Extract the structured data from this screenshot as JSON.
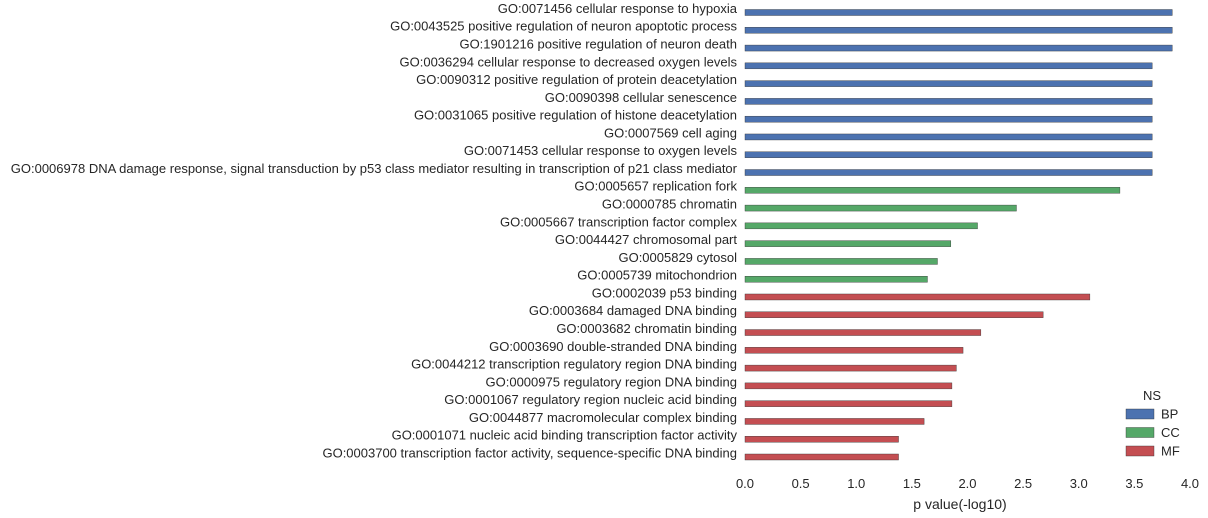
{
  "chart_data": {
    "type": "bar",
    "orientation": "horizontal",
    "title": "",
    "xlabel": "p value(-log10)",
    "ylabel": "",
    "xlim": [
      0,
      4.0
    ],
    "xticks": [
      "0.0",
      "0.5",
      "1.0",
      "1.5",
      "2.0",
      "2.5",
      "3.0",
      "3.5",
      "4.0"
    ],
    "grid": false,
    "legend": {
      "title": "NS",
      "placement": "bottom-right",
      "entries": [
        {
          "name": "BP",
          "color": "#4c72b0"
        },
        {
          "name": "CC",
          "color": "#55a868"
        },
        {
          "name": "MF",
          "color": "#c44e52"
        }
      ]
    },
    "bars": [
      {
        "label": "GO:0071456 cellular response to hypoxia",
        "value": 3.84,
        "ns": "BP"
      },
      {
        "label": "GO:0043525 positive regulation of neuron apoptotic process",
        "value": 3.84,
        "ns": "BP"
      },
      {
        "label": "GO:1901216 positive regulation of neuron death",
        "value": 3.84,
        "ns": "BP"
      },
      {
        "label": "GO:0036294 cellular response to decreased oxygen levels",
        "value": 3.66,
        "ns": "BP"
      },
      {
        "label": "GO:0090312 positive regulation of protein deacetylation",
        "value": 3.66,
        "ns": "BP"
      },
      {
        "label": "GO:0090398 cellular senescence",
        "value": 3.66,
        "ns": "BP"
      },
      {
        "label": "GO:0031065 positive regulation of histone deacetylation",
        "value": 3.66,
        "ns": "BP"
      },
      {
        "label": "GO:0007569 cell aging",
        "value": 3.66,
        "ns": "BP"
      },
      {
        "label": "GO:0071453 cellular response to oxygen levels",
        "value": 3.66,
        "ns": "BP"
      },
      {
        "label": "GO:0006978 DNA damage response, signal transduction by p53 class mediator resulting in transcription of p21 class mediator",
        "value": 3.66,
        "ns": "BP"
      },
      {
        "label": "GO:0005657 replication fork",
        "value": 3.37,
        "ns": "CC"
      },
      {
        "label": "GO:0000785 chromatin",
        "value": 2.44,
        "ns": "CC"
      },
      {
        "label": "GO:0005667 transcription factor complex",
        "value": 2.09,
        "ns": "CC"
      },
      {
        "label": "GO:0044427 chromosomal part",
        "value": 1.85,
        "ns": "CC"
      },
      {
        "label": "GO:0005829 cytosol",
        "value": 1.73,
        "ns": "CC"
      },
      {
        "label": "GO:0005739 mitochondrion",
        "value": 1.64,
        "ns": "CC"
      },
      {
        "label": "GO:0002039 p53 binding",
        "value": 3.1,
        "ns": "MF"
      },
      {
        "label": "GO:0003684 damaged DNA binding",
        "value": 2.68,
        "ns": "MF"
      },
      {
        "label": "GO:0003682 chromatin binding",
        "value": 2.12,
        "ns": "MF"
      },
      {
        "label": "GO:0003690 double-stranded DNA binding",
        "value": 1.96,
        "ns": "MF"
      },
      {
        "label": "GO:0044212 transcription regulatory region DNA binding",
        "value": 1.9,
        "ns": "MF"
      },
      {
        "label": "GO:0000975 regulatory region DNA binding",
        "value": 1.86,
        "ns": "MF"
      },
      {
        "label": "GO:0001067 regulatory region nucleic acid binding",
        "value": 1.86,
        "ns": "MF"
      },
      {
        "label": "GO:0044877 macromolecular complex binding",
        "value": 1.61,
        "ns": "MF"
      },
      {
        "label": "GO:0001071 nucleic acid binding transcription factor activity",
        "value": 1.38,
        "ns": "MF"
      },
      {
        "label": "GO:0003700 transcription factor activity, sequence-specific DNA binding",
        "value": 1.38,
        "ns": "MF"
      }
    ]
  }
}
